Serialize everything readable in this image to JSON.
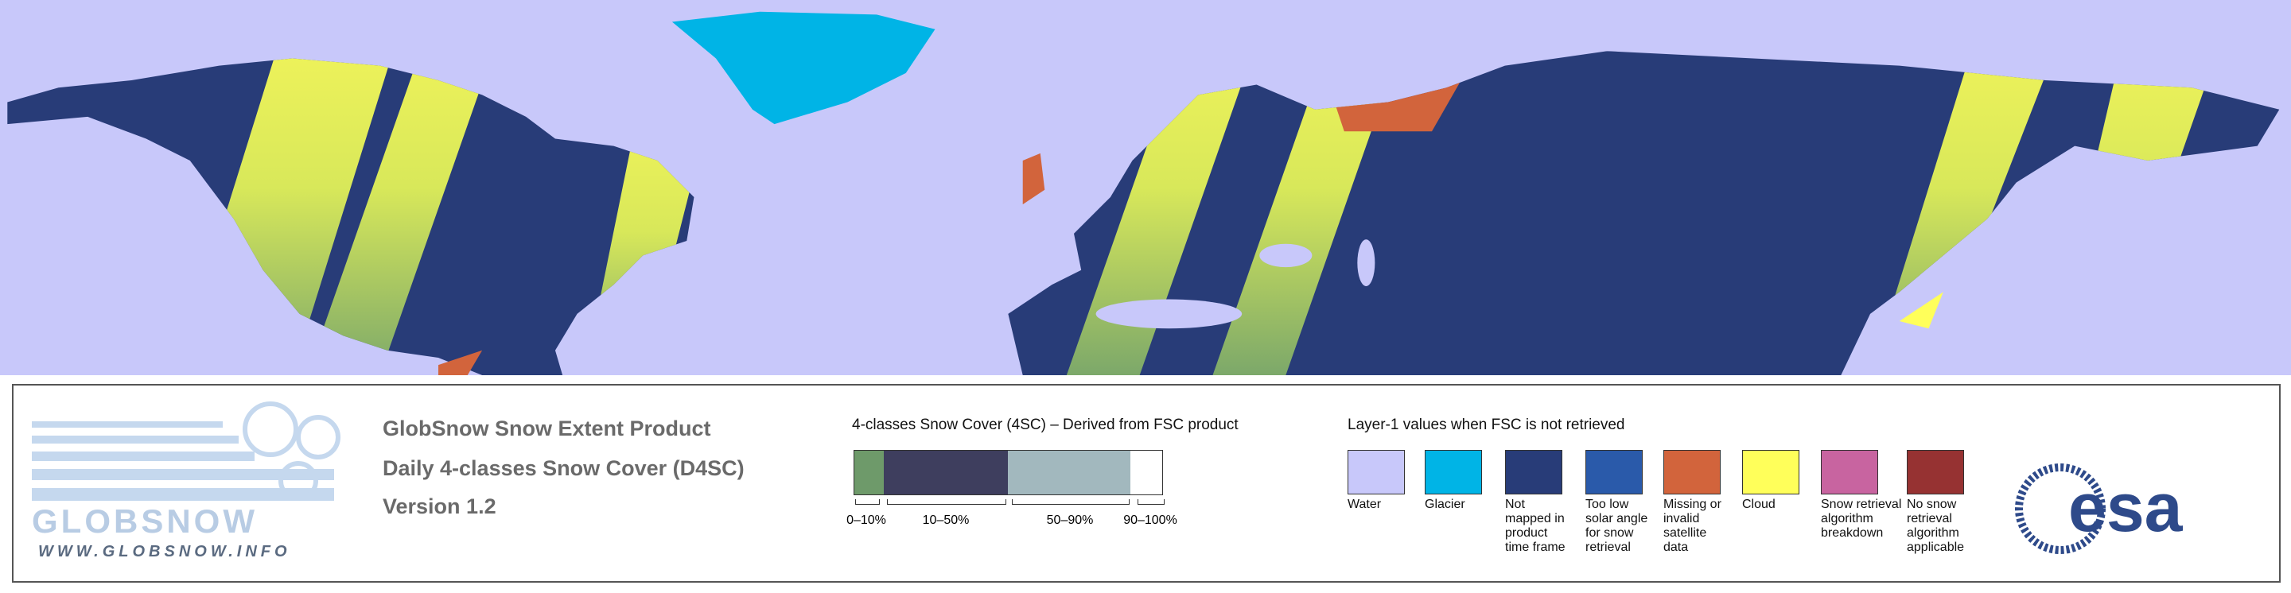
{
  "header": {
    "title": "GlobSnow Snow Extent Product",
    "subtitle": "Daily 4-classes Snow Cover (D4SC)",
    "version": "Version 1.2"
  },
  "logo": {
    "name": "GLOBSNOW",
    "url": "WWW.GLOBSNOW.INFO",
    "agency": "esa"
  },
  "snow_legend": {
    "title": "4-classes Snow Cover (4SC) – Derived from FSC product",
    "classes": [
      {
        "label": "0–10%",
        "color": "#6e9a6a"
      },
      {
        "label": "10–50%",
        "color": "#3e3e5e"
      },
      {
        "label": "50–90%",
        "color": "#a2b8be"
      },
      {
        "label": "90–100%",
        "color": "#ffffff"
      }
    ]
  },
  "layer_legend": {
    "title": "Layer-1 values when FSC is not retrieved",
    "items": [
      {
        "label": "Water",
        "color": "#c8c8fa"
      },
      {
        "label": "Glacier",
        "color": "#00b4e6"
      },
      {
        "label": "Not mapped in product time frame",
        "color": "#283c78"
      },
      {
        "label": "Too low solar angle for snow retrieval",
        "color": "#2a5aaa"
      },
      {
        "label": "Missing or invalid satellite data",
        "color": "#d2643c"
      },
      {
        "label": "Cloud",
        "color": "#ffff5a"
      },
      {
        "label": "Snow retrieval algorithm breakdown",
        "color": "#c864a0"
      },
      {
        "label": "No snow retrieval algorithm applicable",
        "color": "#963232"
      }
    ]
  }
}
